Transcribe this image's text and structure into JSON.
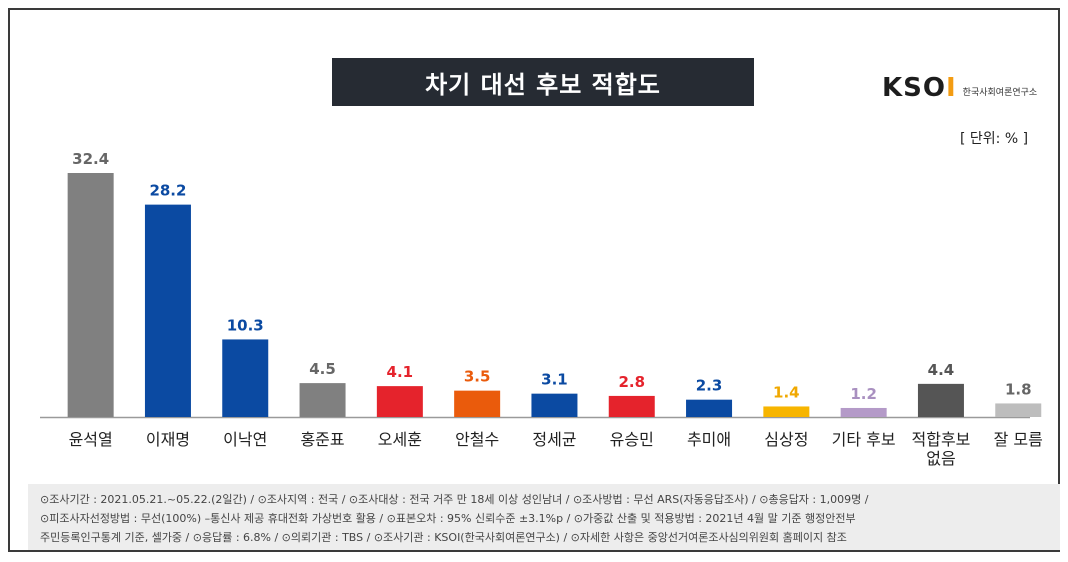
{
  "header": {
    "title": "차기 대선 후보 적합도",
    "logo_mark": "KSOI",
    "logo_org": "한국사회여론연구소",
    "unit": "[ 단위: % ]"
  },
  "chart_data": {
    "type": "bar",
    "title": "차기 대선 후보 적합도",
    "categories": [
      "윤석열",
      "이재명",
      "이낙연",
      "홍준표",
      "오세훈",
      "안철수",
      "정세균",
      "유승민",
      "추미애",
      "심상정",
      "기타 후보",
      "적합후보 없음",
      "잘 모름"
    ],
    "values": [
      32.4,
      28.2,
      10.3,
      4.5,
      4.1,
      3.5,
      3.1,
      2.8,
      2.3,
      1.4,
      1.2,
      4.4,
      1.8
    ],
    "value_labels": [
      "32.4",
      "28.2",
      "10.3",
      "4.5",
      "4.1",
      "3.5",
      "3.1",
      "2.8",
      "2.3",
      "1.4",
      "1.2",
      "4.4",
      "1.8"
    ],
    "category_lines": [
      [
        "윤석열"
      ],
      [
        "이재명"
      ],
      [
        "이낙연"
      ],
      [
        "홍준표"
      ],
      [
        "오세훈"
      ],
      [
        "안철수"
      ],
      [
        "정세균"
      ],
      [
        "유승민"
      ],
      [
        "추미애"
      ],
      [
        "심상정"
      ],
      [
        "기타 후보"
      ],
      [
        "적합후보",
        "없음"
      ],
      [
        "잘 모름"
      ]
    ],
    "bar_colors": [
      "#808080",
      "#0b4aa2",
      "#0b4aa2",
      "#808080",
      "#e5232c",
      "#ea5b0c",
      "#0b4aa2",
      "#e5232c",
      "#0b4aa2",
      "#f7b500",
      "#b49ac8",
      "#555555",
      "#bdbdbd"
    ],
    "label_colors": [
      "#666666",
      "#0b4aa2",
      "#0b4aa2",
      "#666666",
      "#e5232c",
      "#ea5b0c",
      "#0b4aa2",
      "#e5232c",
      "#0b4aa2",
      "#f0a800",
      "#a990c0",
      "#555555",
      "#666666"
    ],
    "ylim": [
      0,
      35
    ],
    "grid": false,
    "xlabel": "",
    "ylabel": ""
  },
  "footer": {
    "line1": "⊙조사기간 : 2021.05.21.~05.22.(2일간)  / ⊙조사지역 : 전국 / ⊙조사대상 : 전국 거주 만 18세 이상 성인남녀 / ⊙조사방법 : 무선 ARS(자동응답조사) / ⊙총응답자 : 1,009명 /",
    "line2": "⊙피조사자선정방법 : 무선(100%) –통신사 제공 휴대전화 가상번호 활용 / ⊙표본오차 : 95% 신뢰수준 ±3.1%p / ⊙가중값 산출 및 적용방법 : 2021년 4월 말 기준 행정안전부",
    "line3": "주민등록인구통계 기준, 셀가중 / ⊙응답률 : 6.8% / ⊙의뢰기관 : TBS / ⊙조사기관 : KSOI(한국사회여론연구소) / ⊙자세한 사항은 중앙선거여론조사심의위원회 홈페이지 참조"
  }
}
